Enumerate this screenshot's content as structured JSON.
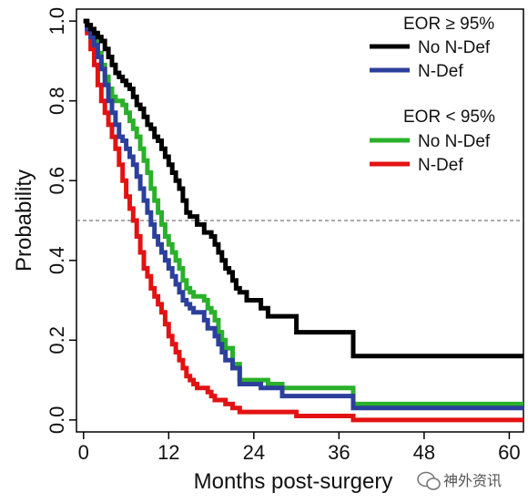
{
  "chart_data": {
    "type": "line",
    "xlabel": "Months post-surgery",
    "ylabel": "Probability",
    "xlim": [
      -1,
      62
    ],
    "ylim": [
      -0.03,
      1.03
    ],
    "xticks": [
      0,
      12,
      24,
      36,
      48,
      60
    ],
    "yticks": [
      0.0,
      0.2,
      0.4,
      0.6,
      0.8,
      1.0
    ],
    "xtick_labels": [
      "0",
      "12",
      "24",
      "36",
      "48",
      "60"
    ],
    "ytick_labels": [
      "0.0",
      "0.2",
      "0.4",
      "0.6",
      "0.8",
      "1.0"
    ],
    "reference_line": {
      "y": 0.5,
      "style": "dashed"
    },
    "grid": false,
    "legend_placement": "top-right",
    "legend": {
      "groups": [
        {
          "title": "EOR ≥ 95%",
          "entries": [
            {
              "label": "No N-Def",
              "color": "#000000"
            },
            {
              "label": "N-Def",
              "color": "#2c3f9c"
            }
          ]
        },
        {
          "title": "EOR < 95%",
          "entries": [
            {
              "label": "No N-Def",
              "color": "#2ab02a"
            },
            {
              "label": "N-Def",
              "color": "#e31212"
            }
          ]
        }
      ]
    },
    "series": [
      {
        "color": "#000000",
        "group": "EOR ≥ 95%",
        "label": "No N-Def",
        "x": [
          0,
          0.5,
          1,
          1.5,
          2,
          2.5,
          3,
          3.5,
          4,
          4.5,
          5,
          5.5,
          6,
          6.5,
          7,
          7.5,
          8,
          8.5,
          9,
          9.5,
          10,
          10.5,
          11,
          11.5,
          12,
          12.5,
          13,
          13.5,
          14,
          14.5,
          15,
          16,
          17,
          18,
          18.5,
          19,
          19.5,
          20,
          20.5,
          21,
          21.5,
          22,
          23,
          24,
          25,
          26,
          27,
          28,
          30,
          32,
          34,
          36,
          38,
          40,
          44,
          48,
          52,
          56,
          60,
          62
        ],
        "y": [
          1.0,
          0.99,
          0.98,
          0.97,
          0.96,
          0.95,
          0.93,
          0.91,
          0.89,
          0.87,
          0.86,
          0.85,
          0.84,
          0.83,
          0.81,
          0.79,
          0.78,
          0.76,
          0.74,
          0.73,
          0.71,
          0.7,
          0.68,
          0.66,
          0.64,
          0.62,
          0.6,
          0.58,
          0.55,
          0.52,
          0.51,
          0.49,
          0.47,
          0.46,
          0.44,
          0.42,
          0.4,
          0.38,
          0.37,
          0.35,
          0.33,
          0.32,
          0.3,
          0.3,
          0.28,
          0.26,
          0.26,
          0.26,
          0.22,
          0.22,
          0.22,
          0.22,
          0.16,
          0.16,
          0.16,
          0.16,
          0.16,
          0.16,
          0.16,
          0.16
        ]
      },
      {
        "color": "#2c3f9c",
        "group": "EOR ≥ 95%",
        "label": "N-Def",
        "x": [
          0,
          0.5,
          1,
          1.5,
          2,
          2.5,
          3,
          3.5,
          4,
          4.5,
          5,
          5.5,
          6,
          6.5,
          7,
          7.5,
          8,
          8.5,
          9,
          9.5,
          10,
          10.5,
          11,
          11.5,
          12,
          12.5,
          13,
          13.5,
          14,
          14.5,
          15,
          15.5,
          16,
          16.5,
          17,
          17.5,
          18,
          18.5,
          19,
          19.5,
          20,
          21,
          22,
          24,
          25,
          26,
          27,
          28,
          30,
          32,
          34,
          36,
          38,
          40,
          44,
          48,
          52,
          56,
          60,
          62
        ],
        "y": [
          1.0,
          0.98,
          0.96,
          0.94,
          0.91,
          0.88,
          0.84,
          0.8,
          0.77,
          0.74,
          0.71,
          0.7,
          0.68,
          0.66,
          0.64,
          0.61,
          0.58,
          0.55,
          0.52,
          0.49,
          0.46,
          0.44,
          0.42,
          0.4,
          0.38,
          0.36,
          0.34,
          0.32,
          0.3,
          0.29,
          0.28,
          0.27,
          0.27,
          0.27,
          0.25,
          0.23,
          0.23,
          0.21,
          0.19,
          0.17,
          0.15,
          0.13,
          0.09,
          0.09,
          0.08,
          0.08,
          0.08,
          0.06,
          0.06,
          0.06,
          0.06,
          0.06,
          0.03,
          0.03,
          0.03,
          0.03,
          0.03,
          0.03,
          0.03,
          0.03
        ]
      },
      {
        "color": "#2ab02a",
        "group": "EOR < 95%",
        "label": "No N-Def",
        "x": [
          0,
          0.5,
          1,
          1.5,
          2,
          2.5,
          3,
          3.5,
          4,
          4.5,
          5,
          5.5,
          6,
          6.5,
          7,
          7.5,
          8,
          8.5,
          9,
          9.5,
          10,
          10.5,
          11,
          11.5,
          12,
          12.5,
          13,
          13.5,
          14,
          14.5,
          15,
          15.5,
          16,
          16.5,
          17,
          17.5,
          18,
          18.5,
          19,
          19.5,
          20,
          21,
          22,
          24,
          25,
          26,
          27,
          28,
          30,
          32,
          34,
          36,
          38,
          40,
          44,
          48,
          52,
          56,
          60,
          62
        ],
        "y": [
          1.0,
          0.99,
          0.97,
          0.95,
          0.92,
          0.89,
          0.86,
          0.83,
          0.81,
          0.8,
          0.8,
          0.79,
          0.77,
          0.75,
          0.73,
          0.71,
          0.68,
          0.65,
          0.62,
          0.58,
          0.55,
          0.52,
          0.49,
          0.46,
          0.44,
          0.42,
          0.4,
          0.38,
          0.35,
          0.33,
          0.32,
          0.31,
          0.31,
          0.31,
          0.3,
          0.28,
          0.27,
          0.25,
          0.22,
          0.2,
          0.18,
          0.14,
          0.1,
          0.1,
          0.1,
          0.09,
          0.09,
          0.08,
          0.08,
          0.08,
          0.08,
          0.08,
          0.04,
          0.04,
          0.04,
          0.04,
          0.04,
          0.04,
          0.04,
          0.04
        ]
      },
      {
        "color": "#e31212",
        "group": "EOR < 95%",
        "label": "N-Def",
        "x": [
          0,
          0.5,
          1,
          1.5,
          2,
          2.5,
          3,
          3.5,
          4,
          4.5,
          5,
          5.5,
          6,
          6.5,
          7,
          7.5,
          8,
          8.5,
          9,
          9.5,
          10,
          10.5,
          11,
          11.5,
          12,
          12.5,
          13,
          13.5,
          14,
          14.5,
          15,
          15.5,
          16,
          16.5,
          17,
          17.5,
          18,
          18.5,
          19,
          19.5,
          20,
          21,
          22,
          23,
          24,
          26,
          28,
          30,
          32,
          34,
          36,
          38,
          40,
          44,
          48,
          52,
          56,
          60,
          62
        ],
        "y": [
          1.0,
          0.97,
          0.93,
          0.89,
          0.84,
          0.8,
          0.77,
          0.74,
          0.71,
          0.68,
          0.64,
          0.6,
          0.56,
          0.53,
          0.5,
          0.46,
          0.42,
          0.38,
          0.36,
          0.33,
          0.31,
          0.29,
          0.27,
          0.24,
          0.21,
          0.19,
          0.17,
          0.15,
          0.13,
          0.11,
          0.1,
          0.09,
          0.08,
          0.08,
          0.08,
          0.07,
          0.06,
          0.05,
          0.05,
          0.05,
          0.04,
          0.03,
          0.02,
          0.02,
          0.02,
          0.02,
          0.02,
          0.01,
          0.01,
          0.01,
          0.01,
          0.0,
          0.0,
          0.0,
          0.0,
          0.0,
          0.0,
          0.0,
          0.0
        ]
      }
    ]
  },
  "watermark": {
    "text": "神外资讯"
  }
}
